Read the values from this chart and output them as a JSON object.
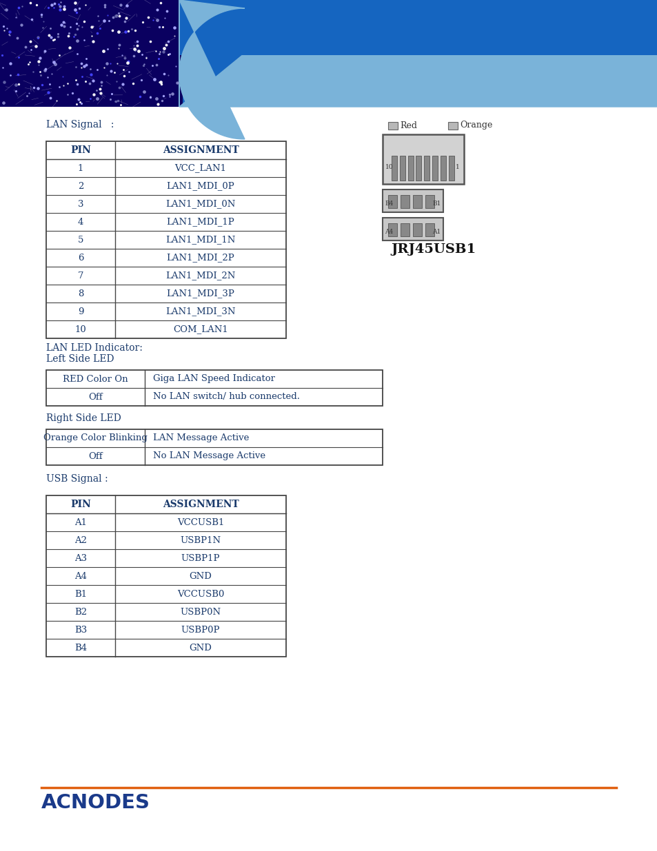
{
  "bg_color": "#ffffff",
  "text_color": "#1a3a6b",
  "table_border_color": "#444444",
  "orange_line_color": "#e06010",
  "acnodes_color": "#1a3a8a",
  "lan_signal_label": "LAN Signal   :",
  "lan_table_headers": [
    "PIN",
    "ASSIGNMENT"
  ],
  "lan_table_data": [
    [
      "1",
      "VCC_LAN1"
    ],
    [
      "2",
      "LAN1_MDI_0P"
    ],
    [
      "3",
      "LAN1_MDI_0N"
    ],
    [
      "4",
      "LAN1_MDI_1P"
    ],
    [
      "5",
      "LAN1_MDI_1N"
    ],
    [
      "6",
      "LAN1_MDI_2P"
    ],
    [
      "7",
      "LAN1_MDI_2N"
    ],
    [
      "8",
      "LAN1_MDI_3P"
    ],
    [
      "9",
      "LAN1_MDI_3N"
    ],
    [
      "10",
      "COM_LAN1"
    ]
  ],
  "lan_led_label": "LAN LED Indicator:",
  "left_side_led_label": "Left Side LED",
  "left_led_table": [
    [
      "RED Color On",
      "Giga LAN Speed Indicator"
    ],
    [
      "Off",
      "No LAN switch/ hub connected."
    ]
  ],
  "right_side_led_label": "Right Side LED",
  "right_led_table": [
    [
      "Orange Color Blinking",
      "LAN Message Active"
    ],
    [
      "Off",
      "No LAN Message Active"
    ]
  ],
  "usb_signal_label": "USB Signal :",
  "usb_table_headers": [
    "PIN",
    "ASSIGNMENT"
  ],
  "usb_table_data": [
    [
      "A1",
      "VCCUSB1"
    ],
    [
      "A2",
      "USBP1N"
    ],
    [
      "A3",
      "USBP1P"
    ],
    [
      "A4",
      "GND"
    ],
    [
      "B1",
      "VCCUSB0"
    ],
    [
      "B2",
      "USBP0N"
    ],
    [
      "B3",
      "USBP0P"
    ],
    [
      "B4",
      "GND"
    ]
  ],
  "connector_label": "JRJ45USB1",
  "red_label": "Red",
  "orange_label": "Orange",
  "header_medium_blue": "#1565c0",
  "header_light_blue": "#7ab3d9",
  "pcb_dark": "#0a0060"
}
